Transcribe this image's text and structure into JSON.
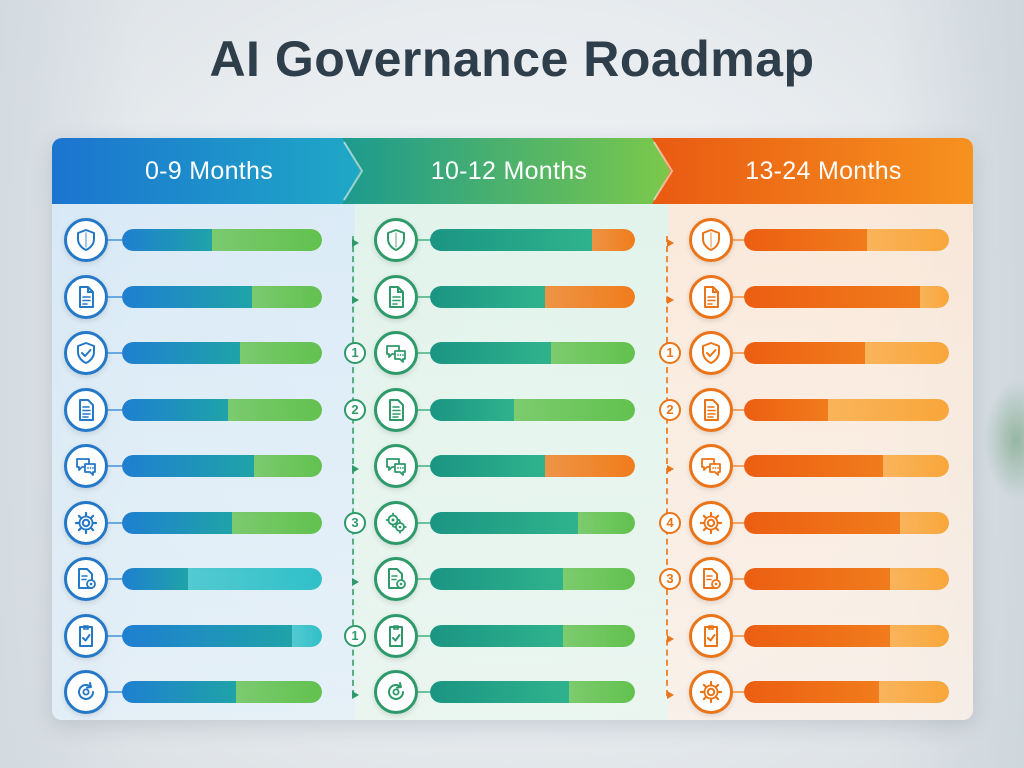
{
  "title": "AI Governance Roadmap",
  "colors": {
    "blue": "#1f7fd1",
    "teal": "#1fa3a8",
    "green": "#62c14e",
    "orange": "#f07c1c",
    "deep_orange": "#ec5e12",
    "amber": "#f9a63a",
    "icon_blue": "#2478c8",
    "icon_green": "#2e9a6a",
    "icon_orange": "#ea7417"
  },
  "phases": [
    {
      "label": "0-9 Months",
      "rows": [
        {
          "icon": "shield-icon",
          "progress": 0.45,
          "second": "green"
        },
        {
          "icon": "document-icon",
          "progress": 0.65,
          "second": "green"
        },
        {
          "icon": "shield-check-icon",
          "progress": 0.59,
          "second": "green"
        },
        {
          "icon": "document-lines-icon",
          "progress": 0.53,
          "second": "green"
        },
        {
          "icon": "chat-icon",
          "progress": 0.66,
          "second": "green"
        },
        {
          "icon": "gear-icon",
          "progress": 0.55,
          "second": "green"
        },
        {
          "icon": "document-gear-icon",
          "progress": 0.33,
          "second": "teal"
        },
        {
          "icon": "checklist-icon",
          "progress": 0.85,
          "second": "teal"
        },
        {
          "icon": "gear-cycle-icon",
          "progress": 0.57,
          "second": "green"
        }
      ]
    },
    {
      "label": "10-12 Months",
      "rows": [
        {
          "icon": "shield-icon",
          "progress": 0.79,
          "second": "orange"
        },
        {
          "icon": "document-icon",
          "progress": 0.56,
          "second": "orange"
        },
        {
          "icon": "chat-icon",
          "progress": 0.59,
          "second": "green"
        },
        {
          "icon": "document-lines-icon",
          "progress": 0.41,
          "second": "green"
        },
        {
          "icon": "chat-icon",
          "progress": 0.56,
          "second": "orange"
        },
        {
          "icon": "gears-icon",
          "progress": 0.72,
          "second": "green"
        },
        {
          "icon": "document-gear-icon",
          "progress": 0.65,
          "second": "green"
        },
        {
          "icon": "checklist-icon",
          "progress": 0.65,
          "second": "green"
        },
        {
          "icon": "gear-cycle-icon",
          "progress": 0.68,
          "second": "green"
        }
      ],
      "markers": [
        "",
        "",
        "1",
        "2",
        "",
        "3",
        "",
        "1",
        ""
      ]
    },
    {
      "label": "13-24 Months",
      "rows": [
        {
          "icon": "shield-icon",
          "progress": 0.6,
          "second": "amber"
        },
        {
          "icon": "document-icon",
          "progress": 0.86,
          "second": "amber"
        },
        {
          "icon": "shield-check-icon",
          "progress": 0.59,
          "second": "amber"
        },
        {
          "icon": "document-lines-icon",
          "progress": 0.41,
          "second": "amber"
        },
        {
          "icon": "chat-icon",
          "progress": 0.68,
          "second": "amber"
        },
        {
          "icon": "gear-icon",
          "progress": 0.76,
          "second": "amber"
        },
        {
          "icon": "document-gear-icon",
          "progress": 0.71,
          "second": "amber"
        },
        {
          "icon": "checklist-icon",
          "progress": 0.71,
          "second": "amber"
        },
        {
          "icon": "gear-icon",
          "progress": 0.66,
          "second": "amber"
        }
      ],
      "markers": [
        "",
        "",
        "1",
        "2",
        "",
        "4",
        "3",
        "",
        ""
      ]
    }
  ]
}
